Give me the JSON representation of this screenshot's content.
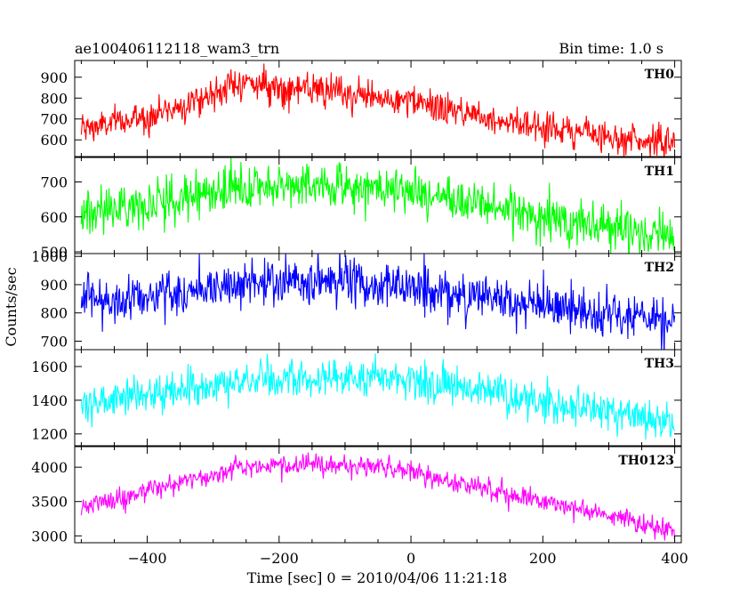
{
  "header": {
    "title": "ae100406112118_wam3_trn",
    "bin_time": "Bin time: 1.0 s"
  },
  "chart_data": {
    "type": "line",
    "xlabel": "Time [sec] 0 = 2010/04/06 11:21:18",
    "ylabel": "Counts/sec",
    "xlim": [
      -510,
      410
    ],
    "x_ticks": [
      -400,
      -200,
      0,
      200,
      400
    ],
    "x_tick_labels": [
      "−400",
      "−200",
      "0",
      "200",
      "400"
    ],
    "bin_time_s": 1.0,
    "grid": false,
    "panels": [
      {
        "name": "TH0",
        "color": "#ff0000",
        "ylim": [
          520,
          980
        ],
        "y_ticks": [
          600,
          700,
          800,
          900
        ],
        "noise_sd": 38,
        "trend": [
          [
            -500,
            650
          ],
          [
            -400,
            710
          ],
          [
            -300,
            820
          ],
          [
            -260,
            880
          ],
          [
            -200,
            850
          ],
          [
            -100,
            820
          ],
          [
            0,
            780
          ],
          [
            100,
            720
          ],
          [
            200,
            660
          ],
          [
            300,
            620
          ],
          [
            400,
            580
          ]
        ]
      },
      {
        "name": "TH1",
        "color": "#00ff00",
        "ylim": [
          495,
          770
        ],
        "y_ticks": [
          500,
          600,
          700
        ],
        "noise_sd": 32,
        "trend": [
          [
            -500,
            610
          ],
          [
            -400,
            640
          ],
          [
            -300,
            670
          ],
          [
            -200,
            690
          ],
          [
            -100,
            690
          ],
          [
            0,
            670
          ],
          [
            100,
            640
          ],
          [
            200,
            600
          ],
          [
            300,
            570
          ],
          [
            400,
            545
          ]
        ]
      },
      {
        "name": "TH2",
        "color": "#0000ff",
        "ylim": [
          670,
          1010
        ],
        "y_ticks": [
          700,
          800,
          900,
          1000
        ],
        "noise_sd": 42,
        "trend": [
          [
            -500,
            840
          ],
          [
            -400,
            860
          ],
          [
            -300,
            890
          ],
          [
            -200,
            910
          ],
          [
            -100,
            910
          ],
          [
            0,
            890
          ],
          [
            100,
            860
          ],
          [
            200,
            820
          ],
          [
            300,
            790
          ],
          [
            400,
            760
          ]
        ]
      },
      {
        "name": "TH3",
        "color": "#00ffff",
        "ylim": [
          1130,
          1700
        ],
        "y_ticks": [
          1200,
          1400,
          1600
        ],
        "noise_sd": 55,
        "trend": [
          [
            -500,
            1380
          ],
          [
            -400,
            1430
          ],
          [
            -300,
            1490
          ],
          [
            -200,
            1520
          ],
          [
            -100,
            1540
          ],
          [
            0,
            1520
          ],
          [
            100,
            1460
          ],
          [
            200,
            1390
          ],
          [
            300,
            1340
          ],
          [
            400,
            1260
          ]
        ]
      },
      {
        "name": "TH0123",
        "color": "#ff00ff",
        "ylim": [
          2900,
          4300
        ],
        "y_ticks": [
          3000,
          3500,
          4000
        ],
        "noise_sd": 75,
        "trend": [
          [
            -500,
            3420
          ],
          [
            -400,
            3650
          ],
          [
            -300,
            3900
          ],
          [
            -250,
            4020
          ],
          [
            -200,
            4030
          ],
          [
            -100,
            4030
          ],
          [
            0,
            3930
          ],
          [
            100,
            3720
          ],
          [
            200,
            3500
          ],
          [
            300,
            3300
          ],
          [
            400,
            3080
          ]
        ]
      }
    ]
  }
}
